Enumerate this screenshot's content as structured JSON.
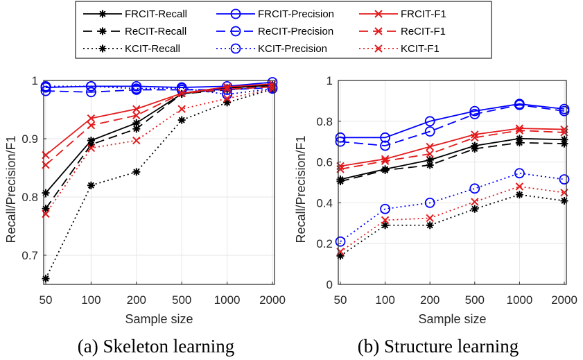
{
  "chart_data": [
    {
      "type": "line",
      "caption": "(a) Skeleton learning",
      "xlabel": "Sample size",
      "ylabel": "Recall/Precision/F1",
      "categories": [
        "50",
        "100",
        "200",
        "500",
        "1000",
        "2000"
      ],
      "ylim": [
        0.65,
        1.0
      ],
      "yticks": [
        "0.7",
        "0.8",
        "0.9",
        "1"
      ],
      "yticks_values": [
        0.7,
        0.8,
        0.9,
        1.0
      ],
      "grid": true,
      "series": [
        {
          "name": "FRCIT-Recall",
          "values": [
            0.807,
            0.897,
            0.927,
            0.977,
            0.987,
            0.992
          ]
        },
        {
          "name": "ReCIT-Recall",
          "values": [
            0.78,
            0.89,
            0.917,
            0.977,
            0.984,
            0.99
          ]
        },
        {
          "name": "KCIT-Recall",
          "values": [
            0.66,
            0.82,
            0.843,
            0.932,
            0.962,
            0.985
          ]
        },
        {
          "name": "FRCIT-Precision",
          "values": [
            0.988,
            0.99,
            0.99,
            0.988,
            0.99,
            0.997
          ]
        },
        {
          "name": "ReCIT-Precision",
          "values": [
            0.982,
            0.98,
            0.984,
            0.984,
            0.984,
            0.988
          ]
        },
        {
          "name": "KCIT-Precision",
          "values": [
            0.99,
            0.99,
            0.986,
            0.987,
            0.976,
            0.986
          ]
        },
        {
          "name": "FRCIT-F1",
          "values": [
            0.872,
            0.935,
            0.951,
            0.978,
            0.989,
            0.994
          ]
        },
        {
          "name": "ReCIT-F1",
          "values": [
            0.855,
            0.923,
            0.94,
            0.978,
            0.985,
            0.989
          ]
        },
        {
          "name": "KCIT-F1",
          "values": [
            0.771,
            0.884,
            0.897,
            0.951,
            0.969,
            0.985
          ]
        }
      ]
    },
    {
      "type": "line",
      "caption": "(b) Structure learning",
      "xlabel": "Sample size",
      "ylabel": "Recall/Precision/F1",
      "categories": [
        "50",
        "100",
        "200",
        "500",
        "1000",
        "2000"
      ],
      "ylim": [
        0,
        1.0
      ],
      "yticks": [
        "0",
        "0.2",
        "0.4",
        "0.6",
        "0.8",
        "1"
      ],
      "yticks_values": [
        0,
        0.2,
        0.4,
        0.6,
        0.8,
        1.0
      ],
      "grid": true,
      "series": [
        {
          "name": "FRCIT-Recall",
          "values": [
            0.515,
            0.565,
            0.61,
            0.68,
            0.715,
            0.71
          ]
        },
        {
          "name": "ReCIT-Recall",
          "values": [
            0.505,
            0.56,
            0.585,
            0.665,
            0.695,
            0.69
          ]
        },
        {
          "name": "KCIT-Recall",
          "values": [
            0.14,
            0.29,
            0.29,
            0.37,
            0.44,
            0.41
          ]
        },
        {
          "name": "FRCIT-Precision",
          "values": [
            0.72,
            0.72,
            0.8,
            0.85,
            0.885,
            0.86
          ]
        },
        {
          "name": "ReCIT-Precision",
          "values": [
            0.7,
            0.68,
            0.75,
            0.835,
            0.88,
            0.85
          ]
        },
        {
          "name": "KCIT-Precision",
          "values": [
            0.21,
            0.37,
            0.4,
            0.47,
            0.545,
            0.515
          ]
        },
        {
          "name": "FRCIT-F1",
          "values": [
            0.58,
            0.615,
            0.675,
            0.735,
            0.765,
            0.76
          ]
        },
        {
          "name": "ReCIT-F1",
          "values": [
            0.565,
            0.605,
            0.64,
            0.72,
            0.755,
            0.745
          ]
        },
        {
          "name": "KCIT-F1",
          "values": [
            0.16,
            0.315,
            0.325,
            0.405,
            0.48,
            0.45
          ]
        }
      ]
    }
  ],
  "legend": {
    "placement": "top-center",
    "entries": [
      [
        "FRCIT-Recall",
        "FRCIT-Precision",
        "FRCIT-F1"
      ],
      [
        "ReCIT-Recall",
        "ReCIT-Precision",
        "ReCIT-F1"
      ],
      [
        "KCIT-Recall",
        "KCIT-Precision",
        "KCIT-F1"
      ]
    ]
  },
  "colors": {
    "recall": "#000000",
    "precision": "#0000ff",
    "f1": "#e31a1c",
    "grid": "#e6e6e6",
    "axis": "#262626"
  },
  "styles": {
    "FRCIT": "solid",
    "ReCIT": "dashed",
    "KCIT": "dotted"
  },
  "markers": {
    "recall": "asterisk",
    "precision": "circle",
    "f1": "x"
  }
}
